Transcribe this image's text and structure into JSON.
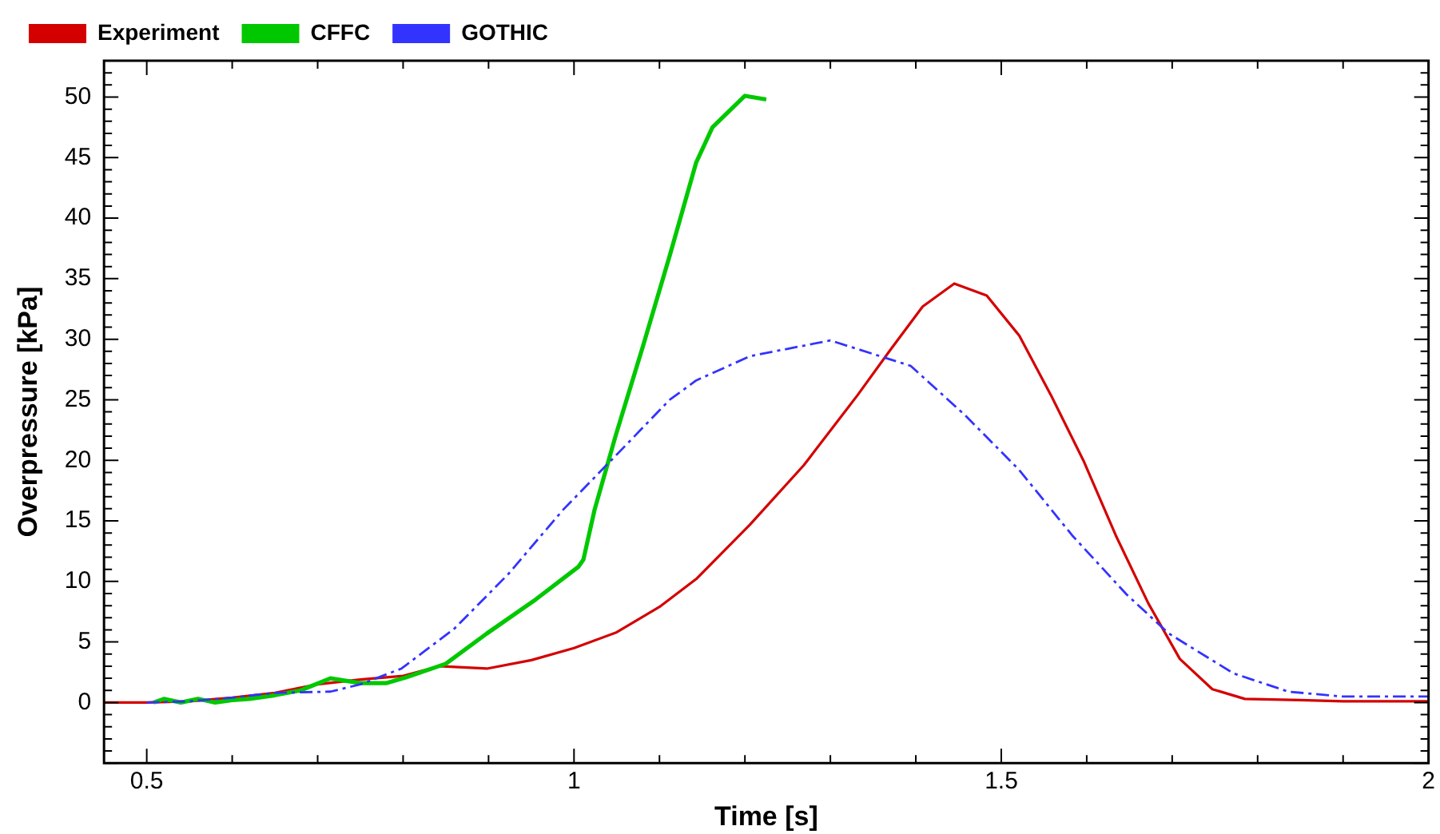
{
  "chart_data": {
    "type": "line",
    "xlabel": "Time [s]",
    "ylabel": "Overpressure [kPa]",
    "xlim": [
      0.45,
      2.0
    ],
    "xticks": [
      {
        "value": 0.5,
        "label": "0.5"
      },
      {
        "value": 1,
        "label": "1"
      },
      {
        "value": 1.5,
        "label": "1.5"
      },
      {
        "value": 2,
        "label": "2"
      }
    ],
    "ylim": [
      -5,
      53
    ],
    "yticks": [
      0,
      5,
      10,
      15,
      20,
      25,
      30,
      35,
      40,
      45,
      50
    ],
    "grid": false,
    "legend": "top left",
    "marker": "none",
    "series": [
      {
        "name": "Experiment",
        "color": "#d40000",
        "line_style": "solid",
        "x": [
          0.45,
          0.5,
          0.55,
          0.6,
          0.65,
          0.7,
          0.75,
          0.8,
          0.842,
          0.898,
          0.95,
          1.0,
          1.05,
          1.1,
          1.143,
          1.206,
          1.269,
          1.332,
          1.37,
          1.408,
          1.445,
          1.483,
          1.521,
          1.558,
          1.596,
          1.634,
          1.672,
          1.709,
          1.747,
          1.785,
          1.85,
          1.9,
          1.95,
          2.0
        ],
        "values": [
          0,
          0,
          0.1,
          0.4,
          0.8,
          1.5,
          1.9,
          2.2,
          3.0,
          2.8,
          3.5,
          4.5,
          5.8,
          7.9,
          10.2,
          14.7,
          19.6,
          25.4,
          29.1,
          32.7,
          34.6,
          33.6,
          30.3,
          25.4,
          20.0,
          13.8,
          8.2,
          3.6,
          1.1,
          0.3,
          0.2,
          0.1,
          0.1,
          0.1
        ]
      },
      {
        "name": "CFFC",
        "color": "#00c800",
        "line_style": "solid",
        "x": [
          0.508,
          0.52,
          0.54,
          0.56,
          0.58,
          0.6,
          0.62,
          0.65,
          0.68,
          0.715,
          0.75,
          0.78,
          0.8,
          0.85,
          0.898,
          0.955,
          1.005,
          1.011,
          1.024,
          1.049,
          1.081,
          1.112,
          1.143,
          1.162,
          1.2,
          1.225
        ],
        "values": [
          0,
          0.3,
          0,
          0.3,
          0,
          0.2,
          0.3,
          0.6,
          1.0,
          2.0,
          1.6,
          1.6,
          2.0,
          3.2,
          5.7,
          8.5,
          11.2,
          11.8,
          15.9,
          22.1,
          29.5,
          36.9,
          44.6,
          47.5,
          50.1,
          49.8
        ]
      },
      {
        "name": "GOTHIC",
        "color": "#3333ff",
        "line_style": "dashed",
        "x": [
          0.5,
          0.55,
          0.6,
          0.65,
          0.715,
          0.75,
          0.798,
          0.86,
          0.923,
          0.987,
          1.049,
          1.112,
          1.143,
          1.206,
          1.3,
          1.394,
          1.458,
          1.521,
          1.583,
          1.647,
          1.696,
          1.772,
          1.836,
          1.898,
          2.0
        ],
        "values": [
          0,
          0.1,
          0.4,
          0.8,
          0.9,
          1.5,
          2.8,
          6.1,
          10.6,
          15.9,
          20.4,
          25.0,
          26.6,
          28.6,
          29.9,
          27.8,
          23.7,
          19.2,
          13.8,
          8.9,
          5.7,
          2.4,
          0.9,
          0.5,
          0.5
        ]
      }
    ]
  }
}
